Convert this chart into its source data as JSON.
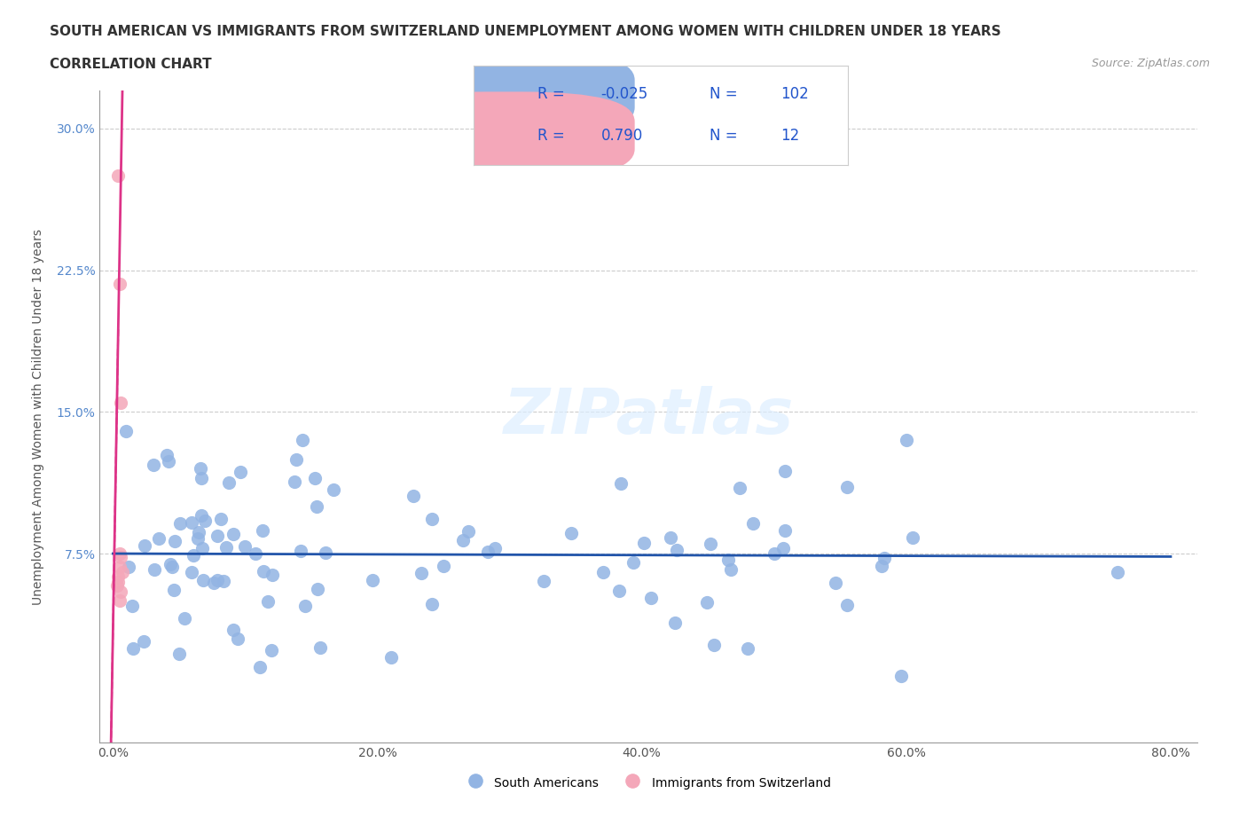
{
  "title_line1": "SOUTH AMERICAN VS IMMIGRANTS FROM SWITZERLAND UNEMPLOYMENT AMONG WOMEN WITH CHILDREN UNDER 18 YEARS",
  "title_line2": "CORRELATION CHART",
  "source_text": "Source: ZipAtlas.com",
  "ylabel": "Unemployment Among Women with Children Under 18 years",
  "xlim": [
    -0.01,
    0.82
  ],
  "ylim": [
    -0.025,
    0.32
  ],
  "xticks": [
    0.0,
    0.2,
    0.4,
    0.6,
    0.8
  ],
  "xtick_labels": [
    "0.0%",
    "20.0%",
    "40.0%",
    "60.0%",
    "80.0%"
  ],
  "yticks": [
    0.075,
    0.15,
    0.225,
    0.3
  ],
  "ytick_labels": [
    "7.5%",
    "15.0%",
    "22.5%",
    "30.0%"
  ],
  "blue_r": "-0.025",
  "blue_n": "102",
  "pink_r": "0.790",
  "pink_n": "12",
  "blue_color": "#92B4E3",
  "pink_color": "#F4A7B9",
  "blue_line_color": "#2255AA",
  "pink_line_color": "#DD3388",
  "grid_color": "#CCCCCC",
  "legend_text_color": "#2255CC",
  "title_color": "#333333",
  "source_color": "#999999",
  "ylabel_color": "#555555",
  "tick_color_x": "#555555",
  "tick_color_y": "#5588CC",
  "watermark_color": "#DDEEFF"
}
